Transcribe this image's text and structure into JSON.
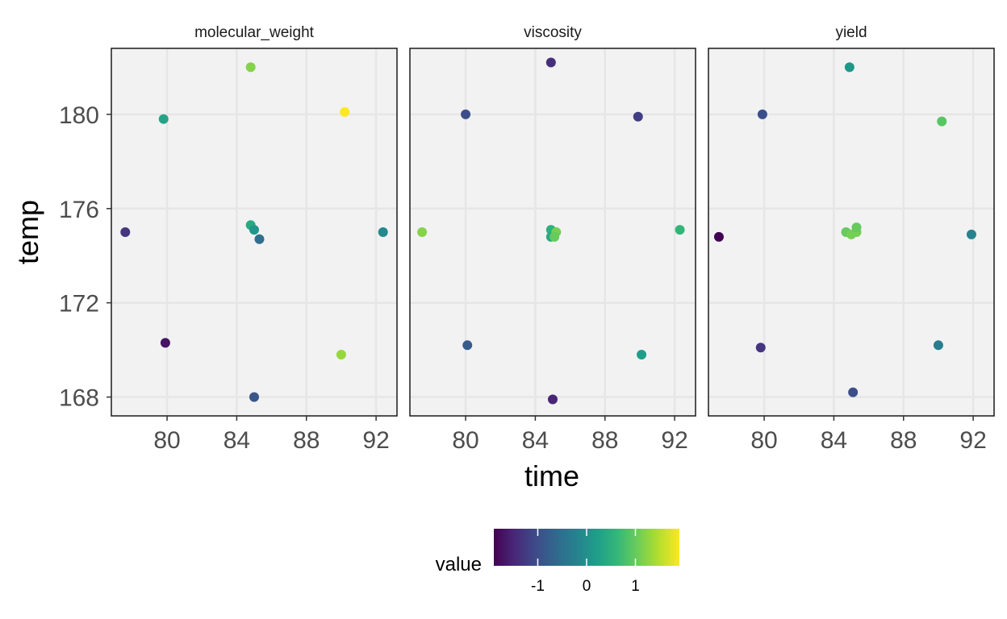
{
  "chart_data": {
    "type": "scatter",
    "xlabel": "time",
    "ylabel": "temp",
    "xlim": [
      76.8,
      93.2
    ],
    "ylim": [
      167.2,
      182.8
    ],
    "x_ticks": [
      80,
      84,
      88,
      92
    ],
    "y_ticks": [
      168,
      172,
      176,
      180
    ],
    "x_tick_labels": [
      "80",
      "84",
      "88",
      "92"
    ],
    "y_tick_labels": [
      "168",
      "172",
      "176",
      "180"
    ],
    "grid": true,
    "facets": [
      {
        "name": "molecular_weight",
        "points": [
          {
            "x": 84.8,
            "y": 182.0,
            "value": 1.2
          },
          {
            "x": 79.8,
            "y": 179.8,
            "value": 0.3
          },
          {
            "x": 90.2,
            "y": 180.1,
            "value": 1.9
          },
          {
            "x": 77.6,
            "y": 175.0,
            "value": -1.3
          },
          {
            "x": 84.8,
            "y": 175.3,
            "value": 0.4
          },
          {
            "x": 85.0,
            "y": 175.1,
            "value": 0.1
          },
          {
            "x": 85.3,
            "y": 174.7,
            "value": -0.5
          },
          {
            "x": 92.4,
            "y": 175.0,
            "value": -0.1
          },
          {
            "x": 79.9,
            "y": 170.3,
            "value": -1.7
          },
          {
            "x": 90.0,
            "y": 169.8,
            "value": 1.3
          },
          {
            "x": 85.0,
            "y": 168.0,
            "value": -0.9
          }
        ]
      },
      {
        "name": "viscosity",
        "points": [
          {
            "x": 84.9,
            "y": 182.2,
            "value": -1.4
          },
          {
            "x": 80.0,
            "y": 180.0,
            "value": -1.0
          },
          {
            "x": 89.9,
            "y": 179.9,
            "value": -1.2
          },
          {
            "x": 77.5,
            "y": 175.0,
            "value": 1.2
          },
          {
            "x": 84.9,
            "y": 175.1,
            "value": 0.5
          },
          {
            "x": 84.9,
            "y": 174.8,
            "value": 0.4
          },
          {
            "x": 85.2,
            "y": 175.0,
            "value": 1.1
          },
          {
            "x": 85.1,
            "y": 174.8,
            "value": 1.0
          },
          {
            "x": 92.3,
            "y": 175.1,
            "value": 0.6
          },
          {
            "x": 80.1,
            "y": 170.2,
            "value": -0.8
          },
          {
            "x": 90.1,
            "y": 169.8,
            "value": 0.2
          },
          {
            "x": 85.0,
            "y": 167.9,
            "value": -1.5
          }
        ]
      },
      {
        "name": "yield",
        "points": [
          {
            "x": 84.9,
            "y": 182.0,
            "value": 0.1
          },
          {
            "x": 79.9,
            "y": 180.0,
            "value": -1.0
          },
          {
            "x": 90.2,
            "y": 179.7,
            "value": 0.9
          },
          {
            "x": 77.4,
            "y": 174.8,
            "value": -1.9
          },
          {
            "x": 84.7,
            "y": 175.0,
            "value": 1.0
          },
          {
            "x": 85.0,
            "y": 174.9,
            "value": 1.1
          },
          {
            "x": 85.3,
            "y": 175.0,
            "value": 1.1
          },
          {
            "x": 85.3,
            "y": 175.2,
            "value": 1.0
          },
          {
            "x": 91.9,
            "y": 174.9,
            "value": -0.2
          },
          {
            "x": 79.8,
            "y": 170.1,
            "value": -1.3
          },
          {
            "x": 90.0,
            "y": 170.2,
            "value": -0.3
          },
          {
            "x": 85.1,
            "y": 168.2,
            "value": -1.0
          }
        ]
      }
    ],
    "legend": {
      "title": "value",
      "position": "bottom",
      "range": [
        -1.9,
        1.9
      ],
      "ticks": [
        -1,
        0,
        1
      ],
      "tick_labels": [
        "-1",
        "0",
        "1"
      ],
      "palette": [
        "#440154",
        "#482878",
        "#3E4A89",
        "#31688E",
        "#26828E",
        "#1F9E89",
        "#35B779",
        "#6DCD59",
        "#B4DE2C",
        "#FDE725"
      ]
    },
    "panel_background": "#F2F2F2",
    "gridline_color": "#E6E6E6"
  }
}
